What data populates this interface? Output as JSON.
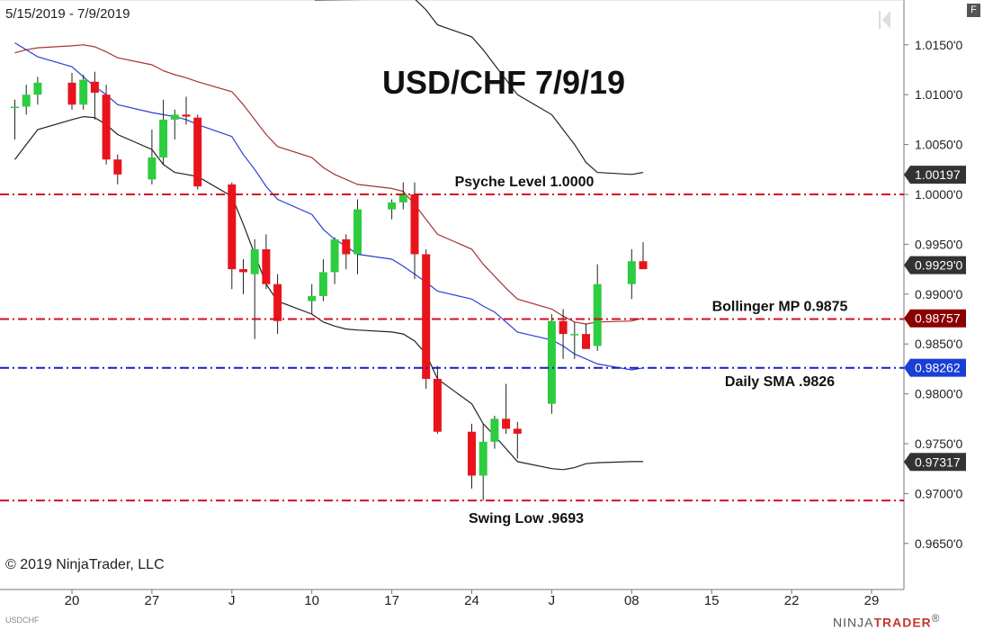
{
  "header": {
    "date_range": "5/15/2019 - 7/9/2019",
    "f_button": "F"
  },
  "footer": {
    "copyright": "© 2019 NinjaTrader, LLC",
    "symbol": "USDCHF",
    "brand_left": "NINJA",
    "brand_right": "TRADER",
    "brand_mark": "®"
  },
  "colors": {
    "up": "#2ecc40",
    "down": "#e8141c",
    "sma": "#2a3fd6",
    "mid": "#a83232",
    "band": "#222222",
    "dash_red": "#d01020",
    "dash_blue": "#1020c0",
    "tag_dark": "#333333",
    "tag_red": "#8b0000",
    "tag_blue": "#1a3fd6"
  },
  "chart_data": {
    "type": "candlestick",
    "title": "USD/CHF 7/9/19",
    "ylim": [
      0.963,
      1.018
    ],
    "y_ticks": [
      "1.0150'0",
      "1.0100'0",
      "1.0050'0",
      "1.0000'0",
      "0.9950'0",
      "0.9900'0",
      "0.9850'0",
      "0.9800'0",
      "0.9750'0",
      "0.9700'0",
      "0.9650'0"
    ],
    "y_tick_values": [
      1.015,
      1.01,
      1.005,
      1.0,
      0.995,
      0.99,
      0.985,
      0.98,
      0.975,
      0.97,
      0.965
    ],
    "x_ticks": [
      "20",
      "27",
      "J",
      "10",
      "17",
      "24",
      "J",
      "08",
      "15",
      "22",
      "29"
    ],
    "x_tick_dates": [
      "2019-05-20",
      "2019-05-27",
      "2019-06-03",
      "2019-06-10",
      "2019-06-17",
      "2019-06-24",
      "2019-07-01",
      "2019-07-08",
      "2019-07-15",
      "2019-07-22",
      "2019-07-29"
    ],
    "candles": [
      {
        "d": "2019-05-15",
        "o": 1.0088,
        "h": 1.0095,
        "l": 1.0055,
        "c": 1.0088
      },
      {
        "d": "2019-05-16",
        "o": 1.0088,
        "h": 1.011,
        "l": 1.008,
        "c": 1.01
      },
      {
        "d": "2019-05-17",
        "o": 1.01,
        "h": 1.0118,
        "l": 1.009,
        "c": 1.0112
      },
      {
        "d": "2019-05-20",
        "o": 1.0112,
        "h": 1.0122,
        "l": 1.0085,
        "c": 1.009
      },
      {
        "d": "2019-05-21",
        "o": 1.009,
        "h": 1.012,
        "l": 1.0085,
        "c": 1.0115
      },
      {
        "d": "2019-05-22",
        "o": 1.0113,
        "h": 1.0123,
        "l": 1.0075,
        "c": 1.0102
      },
      {
        "d": "2019-05-23",
        "o": 1.01,
        "h": 1.011,
        "l": 1.003,
        "c": 1.0035
      },
      {
        "d": "2019-05-24",
        "o": 1.0035,
        "h": 1.004,
        "l": 1.001,
        "c": 1.002
      },
      {
        "d": "2019-05-27",
        "o": 1.0015,
        "h": 1.0065,
        "l": 1.001,
        "c": 1.0037
      },
      {
        "d": "2019-05-28",
        "o": 1.0037,
        "h": 1.0095,
        "l": 1.003,
        "c": 1.0075
      },
      {
        "d": "2019-05-29",
        "o": 1.0075,
        "h": 1.0085,
        "l": 1.0055,
        "c": 1.008
      },
      {
        "d": "2019-05-30",
        "o": 1.008,
        "h": 1.0098,
        "l": 1.007,
        "c": 1.0078
      },
      {
        "d": "2019-05-31",
        "o": 1.0077,
        "h": 1.008,
        "l": 1.0005,
        "c": 1.0008
      },
      {
        "d": "2019-06-03",
        "o": 1.001,
        "h": 1.0012,
        "l": 0.9905,
        "c": 0.9925
      },
      {
        "d": "2019-06-04",
        "o": 0.9925,
        "h": 0.9935,
        "l": 0.99,
        "c": 0.9922
      },
      {
        "d": "2019-06-05",
        "o": 0.992,
        "h": 0.9955,
        "l": 0.9855,
        "c": 0.9945
      },
      {
        "d": "2019-06-06",
        "o": 0.9945,
        "h": 0.996,
        "l": 0.9905,
        "c": 0.991
      },
      {
        "d": "2019-06-07",
        "o": 0.991,
        "h": 0.992,
        "l": 0.986,
        "c": 0.9873
      },
      {
        "d": "2019-06-10",
        "o": 0.9893,
        "h": 0.991,
        "l": 0.988,
        "c": 0.9898
      },
      {
        "d": "2019-06-11",
        "o": 0.9898,
        "h": 0.9935,
        "l": 0.9893,
        "c": 0.9922
      },
      {
        "d": "2019-06-12",
        "o": 0.9922,
        "h": 0.9957,
        "l": 0.991,
        "c": 0.9955
      },
      {
        "d": "2019-06-13",
        "o": 0.9955,
        "h": 0.996,
        "l": 0.9925,
        "c": 0.994
      },
      {
        "d": "2019-06-14",
        "o": 0.994,
        "h": 0.9995,
        "l": 0.992,
        "c": 0.9985
      },
      {
        "d": "2019-06-17",
        "o": 0.9985,
        "h": 0.9995,
        "l": 0.9975,
        "c": 0.9992
      },
      {
        "d": "2019-06-18",
        "o": 0.9992,
        "h": 1.0012,
        "l": 0.9985,
        "c": 1.0
      },
      {
        "d": "2019-06-19",
        "o": 1.0,
        "h": 1.0012,
        "l": 0.9915,
        "c": 0.994
      },
      {
        "d": "2019-06-20",
        "o": 0.994,
        "h": 0.9945,
        "l": 0.9805,
        "c": 0.9815
      },
      {
        "d": "2019-06-21",
        "o": 0.9815,
        "h": 0.9828,
        "l": 0.976,
        "c": 0.9762
      },
      {
        "d": "2019-06-24",
        "o": 0.9762,
        "h": 0.977,
        "l": 0.9705,
        "c": 0.9718
      },
      {
        "d": "2019-06-25",
        "o": 0.9718,
        "h": 0.977,
        "l": 0.9693,
        "c": 0.9752
      },
      {
        "d": "2019-06-26",
        "o": 0.9752,
        "h": 0.9778,
        "l": 0.9745,
        "c": 0.9775
      },
      {
        "d": "2019-06-27",
        "o": 0.9775,
        "h": 0.981,
        "l": 0.976,
        "c": 0.9765
      },
      {
        "d": "2019-06-28",
        "o": 0.9765,
        "h": 0.9772,
        "l": 0.9735,
        "c": 0.976
      },
      {
        "d": "2019-07-01",
        "o": 0.979,
        "h": 0.988,
        "l": 0.978,
        "c": 0.9873
      },
      {
        "d": "2019-07-02",
        "o": 0.9873,
        "h": 0.9885,
        "l": 0.9835,
        "c": 0.986
      },
      {
        "d": "2019-07-03",
        "o": 0.986,
        "h": 0.9872,
        "l": 0.9835,
        "c": 0.986
      },
      {
        "d": "2019-07-04",
        "o": 0.986,
        "h": 0.987,
        "l": 0.9845,
        "c": 0.9845
      },
      {
        "d": "2019-07-05",
        "o": 0.9848,
        "h": 0.993,
        "l": 0.9843,
        "c": 0.991
      },
      {
        "d": "2019-07-08",
        "o": 0.991,
        "h": 0.9945,
        "l": 0.9895,
        "c": 0.9933
      },
      {
        "d": "2019-07-09",
        "o": 0.9933,
        "h": 0.9952,
        "l": 0.9925,
        "c": 0.9925
      }
    ],
    "sma_line": [
      1.0152,
      1.0145,
      1.0138,
      1.0128,
      1.0118,
      1.0108,
      1.01,
      1.009,
      1.0082,
      1.008,
      1.0078,
      1.0075,
      1.007,
      1.0058,
      1.004,
      1.0025,
      1.0008,
      0.9995,
      0.998,
      0.9965,
      0.9955,
      0.9948,
      0.994,
      0.9935,
      0.9928,
      0.992,
      0.9912,
      0.9903,
      0.9895,
      0.9888,
      0.9882,
      0.9872,
      0.9862,
      0.9854,
      0.9848,
      0.984,
      0.9835,
      0.983,
      0.9824,
      0.9826
    ],
    "mid_band": [
      1.0142,
      1.0145,
      1.0147,
      1.0149,
      1.015,
      1.0148,
      1.0143,
      1.0137,
      1.013,
      1.0124,
      1.012,
      1.0117,
      1.0113,
      1.0103,
      1.009,
      1.0075,
      1.006,
      1.0048,
      1.0037,
      1.0027,
      1.002,
      1.0015,
      1.001,
      1.0006,
      1.0003,
      0.999,
      0.9975,
      0.996,
      0.9945,
      0.993,
      0.9918,
      0.9906,
      0.9895,
      0.9885,
      0.9878,
      0.9872,
      0.987,
      0.9872,
      0.9873,
      0.9876
    ],
    "lower_band": [
      1.0035,
      1.005,
      1.0065,
      1.0075,
      1.0078,
      1.0077,
      1.007,
      1.006,
      1.0045,
      1.003,
      1.0022,
      1.002,
      1.0018,
      0.9998,
      0.997,
      0.994,
      0.991,
      0.9893,
      0.988,
      0.9872,
      0.9868,
      0.9865,
      0.9864,
      0.9862,
      0.986,
      0.9853,
      0.984,
      0.9815,
      0.979,
      0.977,
      0.9758,
      0.9745,
      0.9732,
      0.9725,
      0.9724,
      0.9726,
      0.973,
      0.9731,
      0.9732,
      0.9732
    ],
    "upper_band": [
      1.0196,
      1.0185,
      1.017,
      1.0158,
      1.0145,
      1.013,
      1.0115,
      1.01,
      1.008,
      1.0065,
      1.005,
      1.0032,
      1.0022,
      1.002,
      1.0022
    ],
    "levels": [
      {
        "label": "Psyche Level 1.0000",
        "value": 1.0,
        "color": "#d01020"
      },
      {
        "label": "Bollinger MP 0.9875",
        "value": 0.9875,
        "color": "#d01020"
      },
      {
        "label": "Daily SMA .9826",
        "value": 0.9826,
        "color": "#1020c0"
      },
      {
        "label": "Swing Low .9693",
        "value": 0.9693,
        "color": "#d01020"
      }
    ],
    "price_tags": [
      {
        "text": "1.00197",
        "value": 1.00197,
        "color": "#333333"
      },
      {
        "text": "0.9929'0",
        "value": 0.9929,
        "color": "#333333"
      },
      {
        "text": "0.98757",
        "value": 0.98757,
        "color": "#8b0000"
      },
      {
        "text": "0.98262",
        "value": 0.98262,
        "color": "#1a3fd6"
      },
      {
        "text": "0.97317",
        "value": 0.97317,
        "color": "#333333"
      }
    ]
  }
}
